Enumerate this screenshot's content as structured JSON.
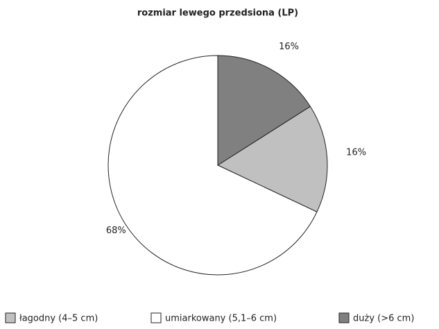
{
  "chart_data": {
    "type": "pie",
    "title": "rozmiar lewego przedsiona (LP)",
    "categories": [
      "łagodny (4–5 cm)",
      "umiarkowany (5,1–6 cm)",
      "duży (>6 cm)"
    ],
    "values": [
      16,
      68,
      16
    ],
    "value_labels": [
      "16%",
      "68%",
      "16%"
    ],
    "colors": [
      "#c0c0c0",
      "#ffffff",
      "#808080"
    ],
    "legend": "bottom"
  }
}
